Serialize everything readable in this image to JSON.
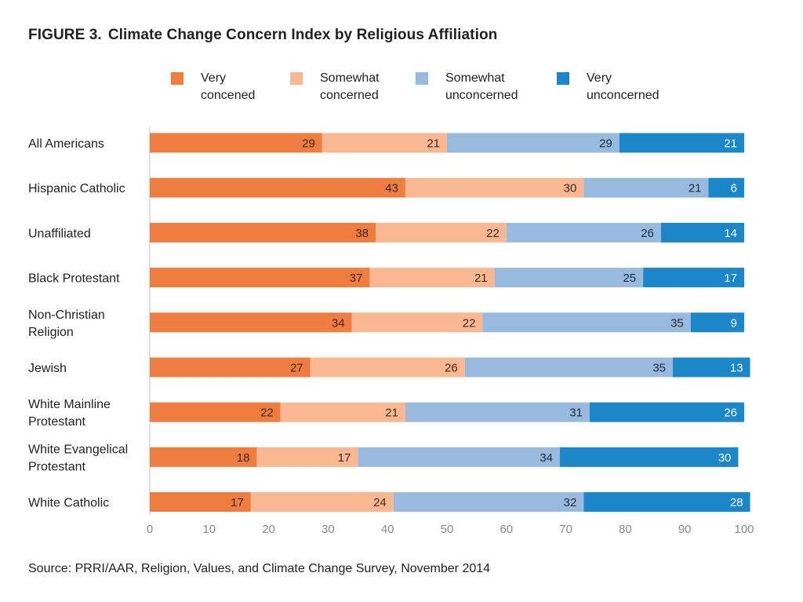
{
  "title": {
    "prefix": "FIGURE 3.",
    "text": "Climate Change Concern Index by Religious Affiliation"
  },
  "source": "Source: PRRI/AAR, Religion, Values, and Climate Change Survey, November 2014",
  "legend": [
    {
      "line1": "Very",
      "line2": "concened",
      "color": "#f07d40"
    },
    {
      "line1": "Somewhat",
      "line2": "concerned",
      "color": "#f9b892"
    },
    {
      "line1": "Somewhat",
      "line2": "unconcerned",
      "color": "#98badf"
    },
    {
      "line1": "Very",
      "line2": "unconcerned",
      "color": "#1b87c9"
    }
  ],
  "chart_data": {
    "type": "bar",
    "orientation": "horizontal",
    "stacked": true,
    "title": "Climate Change Concern Index by Religious Affiliation",
    "xlabel": "",
    "ylabel": "",
    "xlim": [
      0,
      100
    ],
    "xticks": [
      0,
      10,
      20,
      30,
      40,
      50,
      60,
      70,
      80,
      90,
      100
    ],
    "categories": [
      [
        "All Americans"
      ],
      [
        "Hispanic Catholic"
      ],
      [
        "Unaffiliated"
      ],
      [
        "Black Protestant"
      ],
      [
        "Non-Christian",
        "Religion"
      ],
      [
        "Jewish"
      ],
      [
        "White Mainline",
        "Protestant"
      ],
      [
        "White Evangelical",
        "Protestant"
      ],
      [
        "White Catholic"
      ]
    ],
    "series": [
      {
        "name": "Very concened",
        "color": "#f07d40",
        "label_color": "#3a2a20",
        "values": [
          29,
          43,
          38,
          37,
          34,
          27,
          22,
          18,
          17
        ]
      },
      {
        "name": "Somewhat concerned",
        "color": "#f9b892",
        "label_color": "#3a2a20",
        "values": [
          21,
          30,
          22,
          21,
          22,
          26,
          21,
          17,
          24
        ]
      },
      {
        "name": "Somewhat unconcerned",
        "color": "#98badf",
        "label_color": "#1e2a38",
        "values": [
          29,
          21,
          26,
          25,
          35,
          35,
          31,
          34,
          32
        ]
      },
      {
        "name": "Very unconcerned",
        "color": "#1b87c9",
        "label_color": "#ffffff",
        "values": [
          21,
          6,
          14,
          17,
          9,
          13,
          26,
          30,
          28
        ]
      }
    ]
  }
}
